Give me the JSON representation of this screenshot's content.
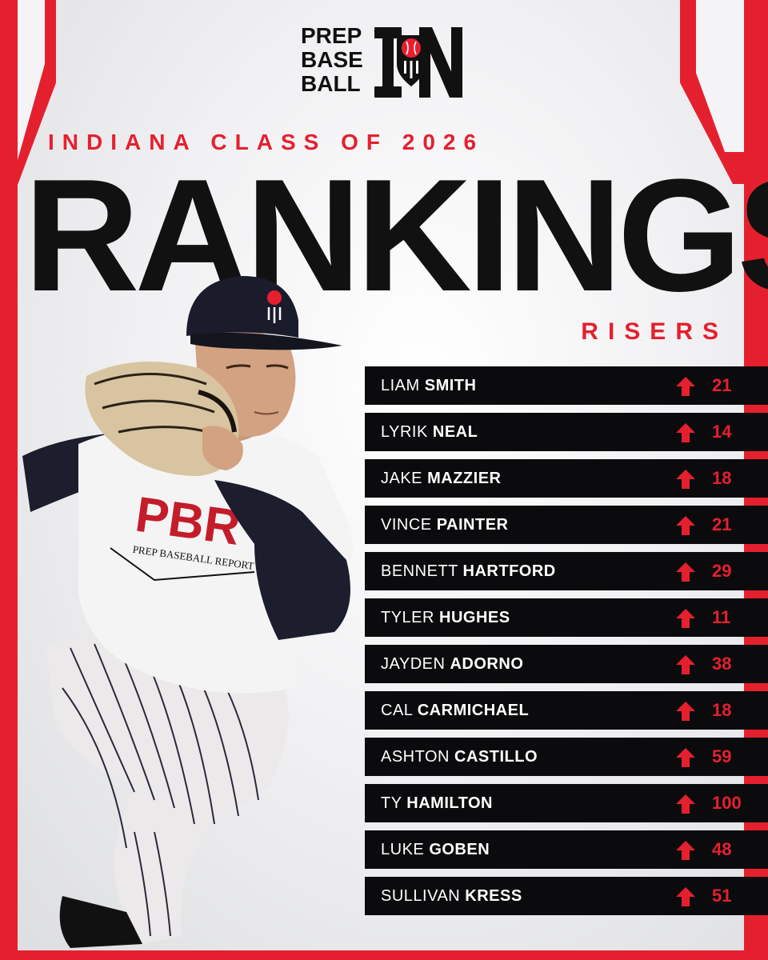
{
  "brand": {
    "logo_lines": [
      "PREP",
      "BASE",
      "BALL"
    ],
    "logo_state": "IN"
  },
  "header": {
    "subtitle": "INDIANA CLASS OF 2026",
    "title": "RANKINGS",
    "tag": "RISERS"
  },
  "colors": {
    "accent": "#e5202e",
    "row_bg": "#0b0b0d",
    "text_dark": "#111111"
  },
  "icons": {
    "up": "arrow-up-icon"
  },
  "risers": [
    {
      "first": "LIAM",
      "last": "SMITH",
      "change": "21"
    },
    {
      "first": "LYRIK",
      "last": "NEAL",
      "change": "14"
    },
    {
      "first": "JAKE",
      "last": "MAZZIER",
      "change": "18"
    },
    {
      "first": "VINCE",
      "last": "PAINTER",
      "change": "21"
    },
    {
      "first": "BENNETT",
      "last": "HARTFORD",
      "change": "29"
    },
    {
      "first": "TYLER",
      "last": "HUGHES",
      "change": "11"
    },
    {
      "first": "JAYDEN",
      "last": "ADORNO",
      "change": "38"
    },
    {
      "first": "CAL",
      "last": "CARMICHAEL",
      "change": "18"
    },
    {
      "first": "ASHTON",
      "last": "CASTILLO",
      "change": "59"
    },
    {
      "first": "TY",
      "last": "HAMILTON",
      "change": "100"
    },
    {
      "first": "LUKE",
      "last": "GOBEN",
      "change": "48"
    },
    {
      "first": "SULLIVAN",
      "last": "KRESS",
      "change": "51"
    }
  ],
  "player_jersey": {
    "logo": "PBR",
    "text": "PREP BASEBALL REPORT"
  }
}
